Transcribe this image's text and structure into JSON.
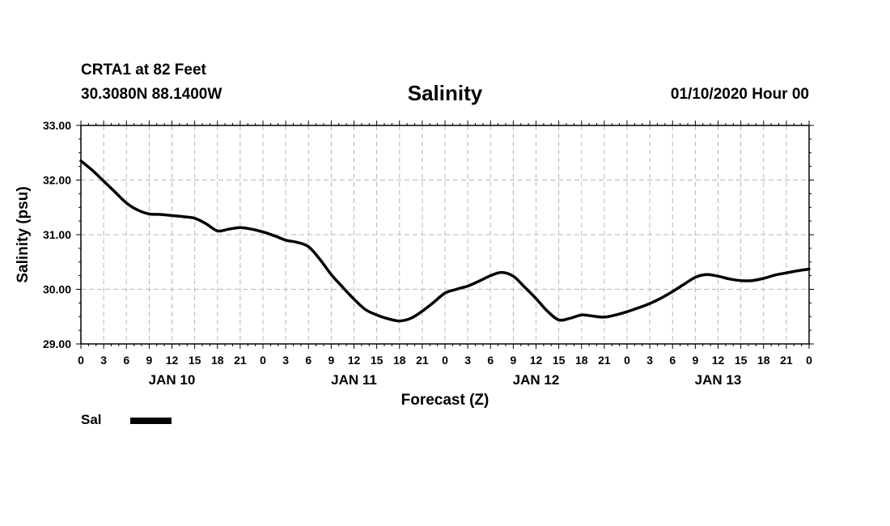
{
  "header": {
    "station": "CRTA1 at 82 Feet",
    "coords": "30.3080N 88.1400W",
    "title": "Salinity",
    "datetime": "01/10/2020 Hour 00"
  },
  "legend": {
    "label": "Sal",
    "color": "#000000"
  },
  "chart_data": {
    "type": "line",
    "title": "Salinity",
    "xlabel": "Forecast (Z)",
    "ylabel": "Salinity (psu)",
    "xlim": [
      0,
      96
    ],
    "ylim": [
      29.0,
      33.0
    ],
    "grid": true,
    "yticks": [
      29.0,
      30.0,
      31.0,
      32.0,
      33.0
    ],
    "ytick_labels": [
      "29.00",
      "30.00",
      "31.00",
      "32.00",
      "33.00"
    ],
    "xtick_labels": [
      "0",
      "3",
      "6",
      "9",
      "12",
      "15",
      "18",
      "21",
      "0",
      "3",
      "6",
      "9",
      "12",
      "15",
      "18",
      "21",
      "0",
      "3",
      "6",
      "9",
      "12",
      "15",
      "18",
      "21",
      "0",
      "3",
      "6",
      "9",
      "12",
      "15",
      "18",
      "21",
      "0"
    ],
    "day_labels": [
      {
        "label": "JAN 10",
        "hour": 12
      },
      {
        "label": "JAN 11",
        "hour": 36
      },
      {
        "label": "JAN 12",
        "hour": 60
      },
      {
        "label": "JAN 13",
        "hour": 84
      }
    ],
    "legend_position": "bottom-left",
    "series": [
      {
        "name": "Sal",
        "x": [
          0,
          1.5,
          3,
          4.5,
          6,
          7.5,
          9,
          10.5,
          12,
          13.5,
          15,
          16.5,
          18,
          19.5,
          21,
          22.5,
          24,
          25.5,
          27,
          28.5,
          30,
          31.5,
          33,
          34.5,
          36,
          37.5,
          39,
          40.5,
          42,
          43.5,
          45,
          46.5,
          48,
          49.5,
          51,
          52.5,
          54,
          55.5,
          57,
          58.5,
          60,
          61.5,
          63,
          64.5,
          66,
          67.5,
          69,
          70.5,
          72,
          73.5,
          75,
          76.5,
          78,
          79.5,
          81,
          82.5,
          84,
          85.5,
          87,
          88.5,
          90,
          91.5,
          93,
          94.5,
          96
        ],
        "values": [
          32.35,
          32.18,
          31.98,
          31.78,
          31.58,
          31.45,
          31.38,
          31.37,
          31.35,
          31.33,
          31.3,
          31.2,
          31.07,
          31.1,
          31.13,
          31.1,
          31.05,
          30.98,
          30.9,
          30.86,
          30.78,
          30.55,
          30.27,
          30.04,
          29.82,
          29.63,
          29.53,
          29.46,
          29.42,
          29.47,
          29.6,
          29.76,
          29.93,
          30.0,
          30.06,
          30.15,
          30.25,
          30.31,
          30.24,
          30.04,
          29.83,
          29.6,
          29.44,
          29.47,
          29.53,
          29.51,
          29.49,
          29.53,
          29.59,
          29.66,
          29.74,
          29.84,
          29.96,
          30.09,
          30.22,
          30.27,
          30.24,
          30.19,
          30.16,
          30.16,
          30.2,
          30.26,
          30.3,
          30.34,
          30.37
        ]
      }
    ]
  }
}
